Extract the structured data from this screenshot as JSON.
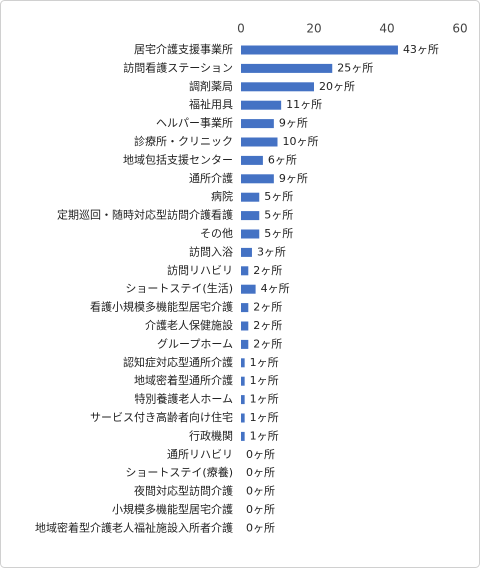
{
  "chart_data": {
    "type": "bar",
    "orientation": "horizontal",
    "categories": [
      "居宅介護支援事業所",
      "訪問看護ステーション",
      "調剤薬局",
      "福祉用具",
      "ヘルパー事業所",
      "診療所・クリニック",
      "地域包括支援センター",
      "通所介護",
      "病院",
      "定期巡回・随時対応型訪問介護看護",
      "その他",
      "訪問入浴",
      "訪問リハビリ",
      "ショートステイ(生活)",
      "看護小規模多機能型居宅介護",
      "介護老人保健施設",
      "グループホーム",
      "認知症対応型通所介護",
      "地域密着型通所介護",
      "特別養護老人ホーム",
      "サービス付き高齢者向け住宅",
      "行政機関",
      "通所リハビリ",
      "ショートステイ(療養)",
      "夜間対応型訪問介護",
      "小規模多機能型居宅介護",
      "地域密着型介護老人福祉施設入所者介護"
    ],
    "values": [
      43,
      25,
      20,
      11,
      9,
      10,
      6,
      9,
      5,
      5,
      5,
      3,
      2,
      4,
      2,
      2,
      2,
      1,
      1,
      1,
      1,
      1,
      0,
      0,
      0,
      0,
      0
    ],
    "value_labels": [
      "43ヶ所",
      "25ヶ所",
      "20ヶ所",
      "11ヶ所",
      "9ヶ所",
      "10ヶ所",
      "6ヶ所",
      "9ヶ所",
      "5ヶ所",
      "5ヶ所",
      "5ヶ所",
      "3ヶ所",
      "2ヶ所",
      "4ヶ所",
      "2ヶ所",
      "2ヶ所",
      "2ヶ所",
      "1ヶ所",
      "1ヶ所",
      "1ヶ所",
      "1ヶ所",
      "1ヶ所",
      "0ヶ所",
      "0ヶ所",
      "0ヶ所",
      "0ヶ所",
      "0ヶ所"
    ],
    "color": "#4472c4",
    "xlim": [
      0,
      60
    ],
    "xticks": [
      0,
      20,
      40,
      60
    ],
    "grid": false
  }
}
